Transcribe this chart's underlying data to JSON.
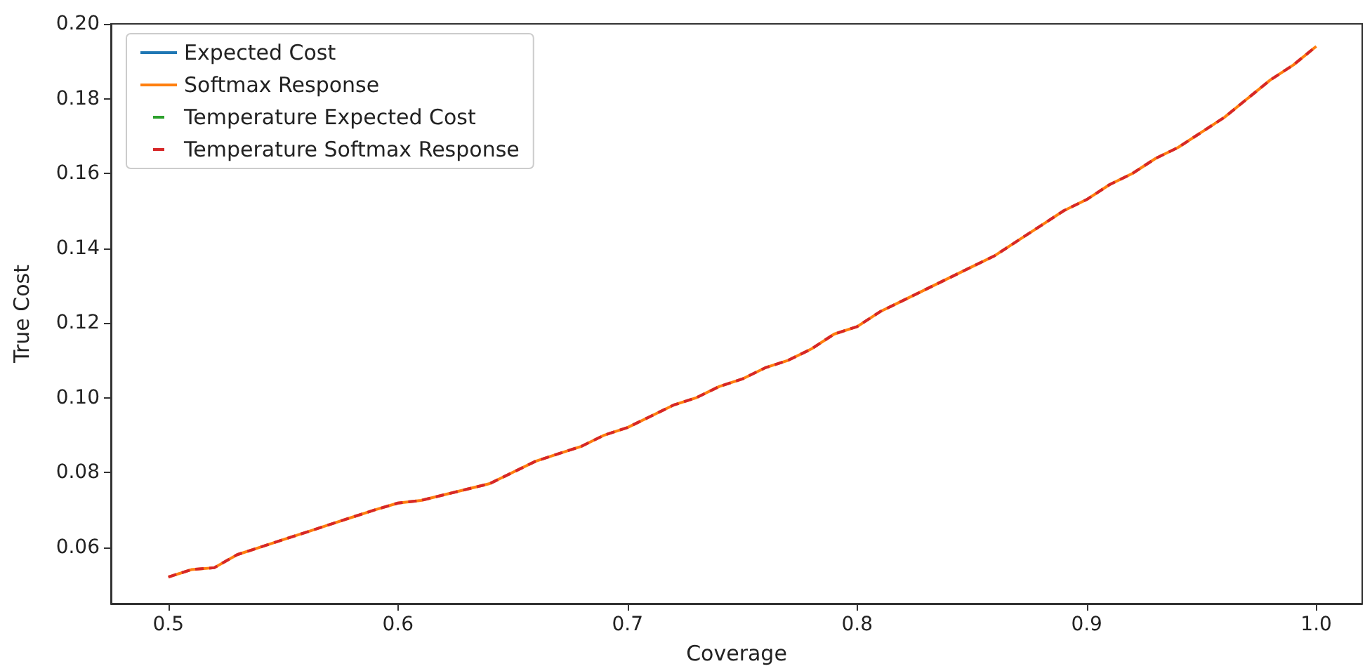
{
  "chart_data": {
    "type": "line",
    "xlabel": "Coverage",
    "ylabel": "True Cost",
    "x": [
      0.5,
      0.51,
      0.52,
      0.53,
      0.54,
      0.55,
      0.56,
      0.57,
      0.58,
      0.59,
      0.6,
      0.61,
      0.62,
      0.63,
      0.64,
      0.65,
      0.66,
      0.67,
      0.68,
      0.69,
      0.7,
      0.71,
      0.72,
      0.73,
      0.74,
      0.75,
      0.76,
      0.77,
      0.78,
      0.79,
      0.8,
      0.81,
      0.82,
      0.83,
      0.84,
      0.85,
      0.86,
      0.87,
      0.88,
      0.89,
      0.9,
      0.91,
      0.92,
      0.93,
      0.94,
      0.95,
      0.96,
      0.97,
      0.98,
      0.99,
      1.0
    ],
    "series": [
      {
        "name": "Expected Cost",
        "color": "#1f77b4",
        "line_style": "solid",
        "values": [
          null,
          null,
          null,
          null,
          null,
          null,
          null,
          null,
          null,
          null,
          null,
          null,
          null,
          null,
          null,
          null,
          null,
          null,
          null,
          null,
          null,
          null,
          null,
          null,
          null,
          null,
          null,
          null,
          null,
          null,
          null,
          null,
          null,
          null,
          null,
          null,
          null,
          null,
          null,
          null,
          null,
          null,
          null,
          null,
          null,
          null,
          null,
          null,
          null,
          null,
          null
        ]
      },
      {
        "name": "Softmax Response",
        "color": "#ff7f0e",
        "line_style": "solid",
        "values": [
          0.052,
          0.054,
          0.0545,
          0.058,
          0.06,
          0.062,
          0.064,
          0.066,
          0.068,
          0.07,
          0.0718,
          0.0725,
          0.074,
          0.0755,
          0.077,
          0.08,
          0.083,
          0.085,
          0.087,
          0.09,
          0.092,
          0.095,
          0.098,
          0.1,
          0.103,
          0.105,
          0.108,
          0.11,
          0.113,
          0.117,
          0.119,
          0.123,
          0.126,
          0.129,
          0.132,
          0.135,
          0.138,
          0.142,
          0.146,
          0.15,
          0.153,
          0.157,
          0.16,
          0.164,
          0.167,
          0.171,
          0.175,
          0.18,
          0.185,
          0.189,
          0.194
        ]
      },
      {
        "name": "Temperature Expected Cost",
        "color": "#2ca02c",
        "line_style": "dashed",
        "values": [
          null,
          null,
          null,
          null,
          null,
          null,
          null,
          null,
          null,
          null,
          null,
          null,
          null,
          null,
          null,
          null,
          null,
          null,
          null,
          null,
          null,
          null,
          null,
          null,
          null,
          null,
          null,
          null,
          null,
          null,
          null,
          null,
          null,
          null,
          null,
          null,
          null,
          null,
          null,
          null,
          null,
          null,
          null,
          null,
          null,
          null,
          null,
          null,
          null,
          null,
          null
        ]
      },
      {
        "name": "Temperature Softmax Response",
        "color": "#d62728",
        "line_style": "dashed",
        "values": [
          0.052,
          0.054,
          0.0545,
          0.058,
          0.06,
          0.062,
          0.064,
          0.066,
          0.068,
          0.07,
          0.0718,
          0.0725,
          0.074,
          0.0755,
          0.077,
          0.08,
          0.083,
          0.085,
          0.087,
          0.09,
          0.092,
          0.095,
          0.098,
          0.1,
          0.103,
          0.105,
          0.108,
          0.11,
          0.113,
          0.117,
          0.119,
          0.123,
          0.126,
          0.129,
          0.132,
          0.135,
          0.138,
          0.142,
          0.146,
          0.15,
          0.153,
          0.157,
          0.16,
          0.164,
          0.167,
          0.171,
          0.175,
          0.18,
          0.185,
          0.189,
          0.194
        ]
      }
    ],
    "xlim": [
      0.475,
      1.02
    ],
    "xticks": [
      {
        "value": 0.5,
        "label": "0.5"
      },
      {
        "value": 0.6,
        "label": "0.6"
      },
      {
        "value": 0.7,
        "label": "0.7"
      },
      {
        "value": 0.8,
        "label": "0.8"
      },
      {
        "value": 0.9,
        "label": "0.9"
      },
      {
        "value": 1.0,
        "label": "1.0"
      }
    ],
    "ylim": [
      0.0449,
      0.2
    ],
    "yticks": [
      {
        "value": 0.06,
        "label": "0.06"
      },
      {
        "value": 0.08,
        "label": "0.08"
      },
      {
        "value": 0.1,
        "label": "0.10"
      },
      {
        "value": 0.12,
        "label": "0.12"
      },
      {
        "value": 0.14,
        "label": "0.14"
      },
      {
        "value": 0.16,
        "label": "0.16"
      },
      {
        "value": 0.18,
        "label": "0.18"
      },
      {
        "value": 0.2,
        "label": "0.20"
      }
    ],
    "grid": false,
    "legend": "top left",
    "marker": "none"
  }
}
